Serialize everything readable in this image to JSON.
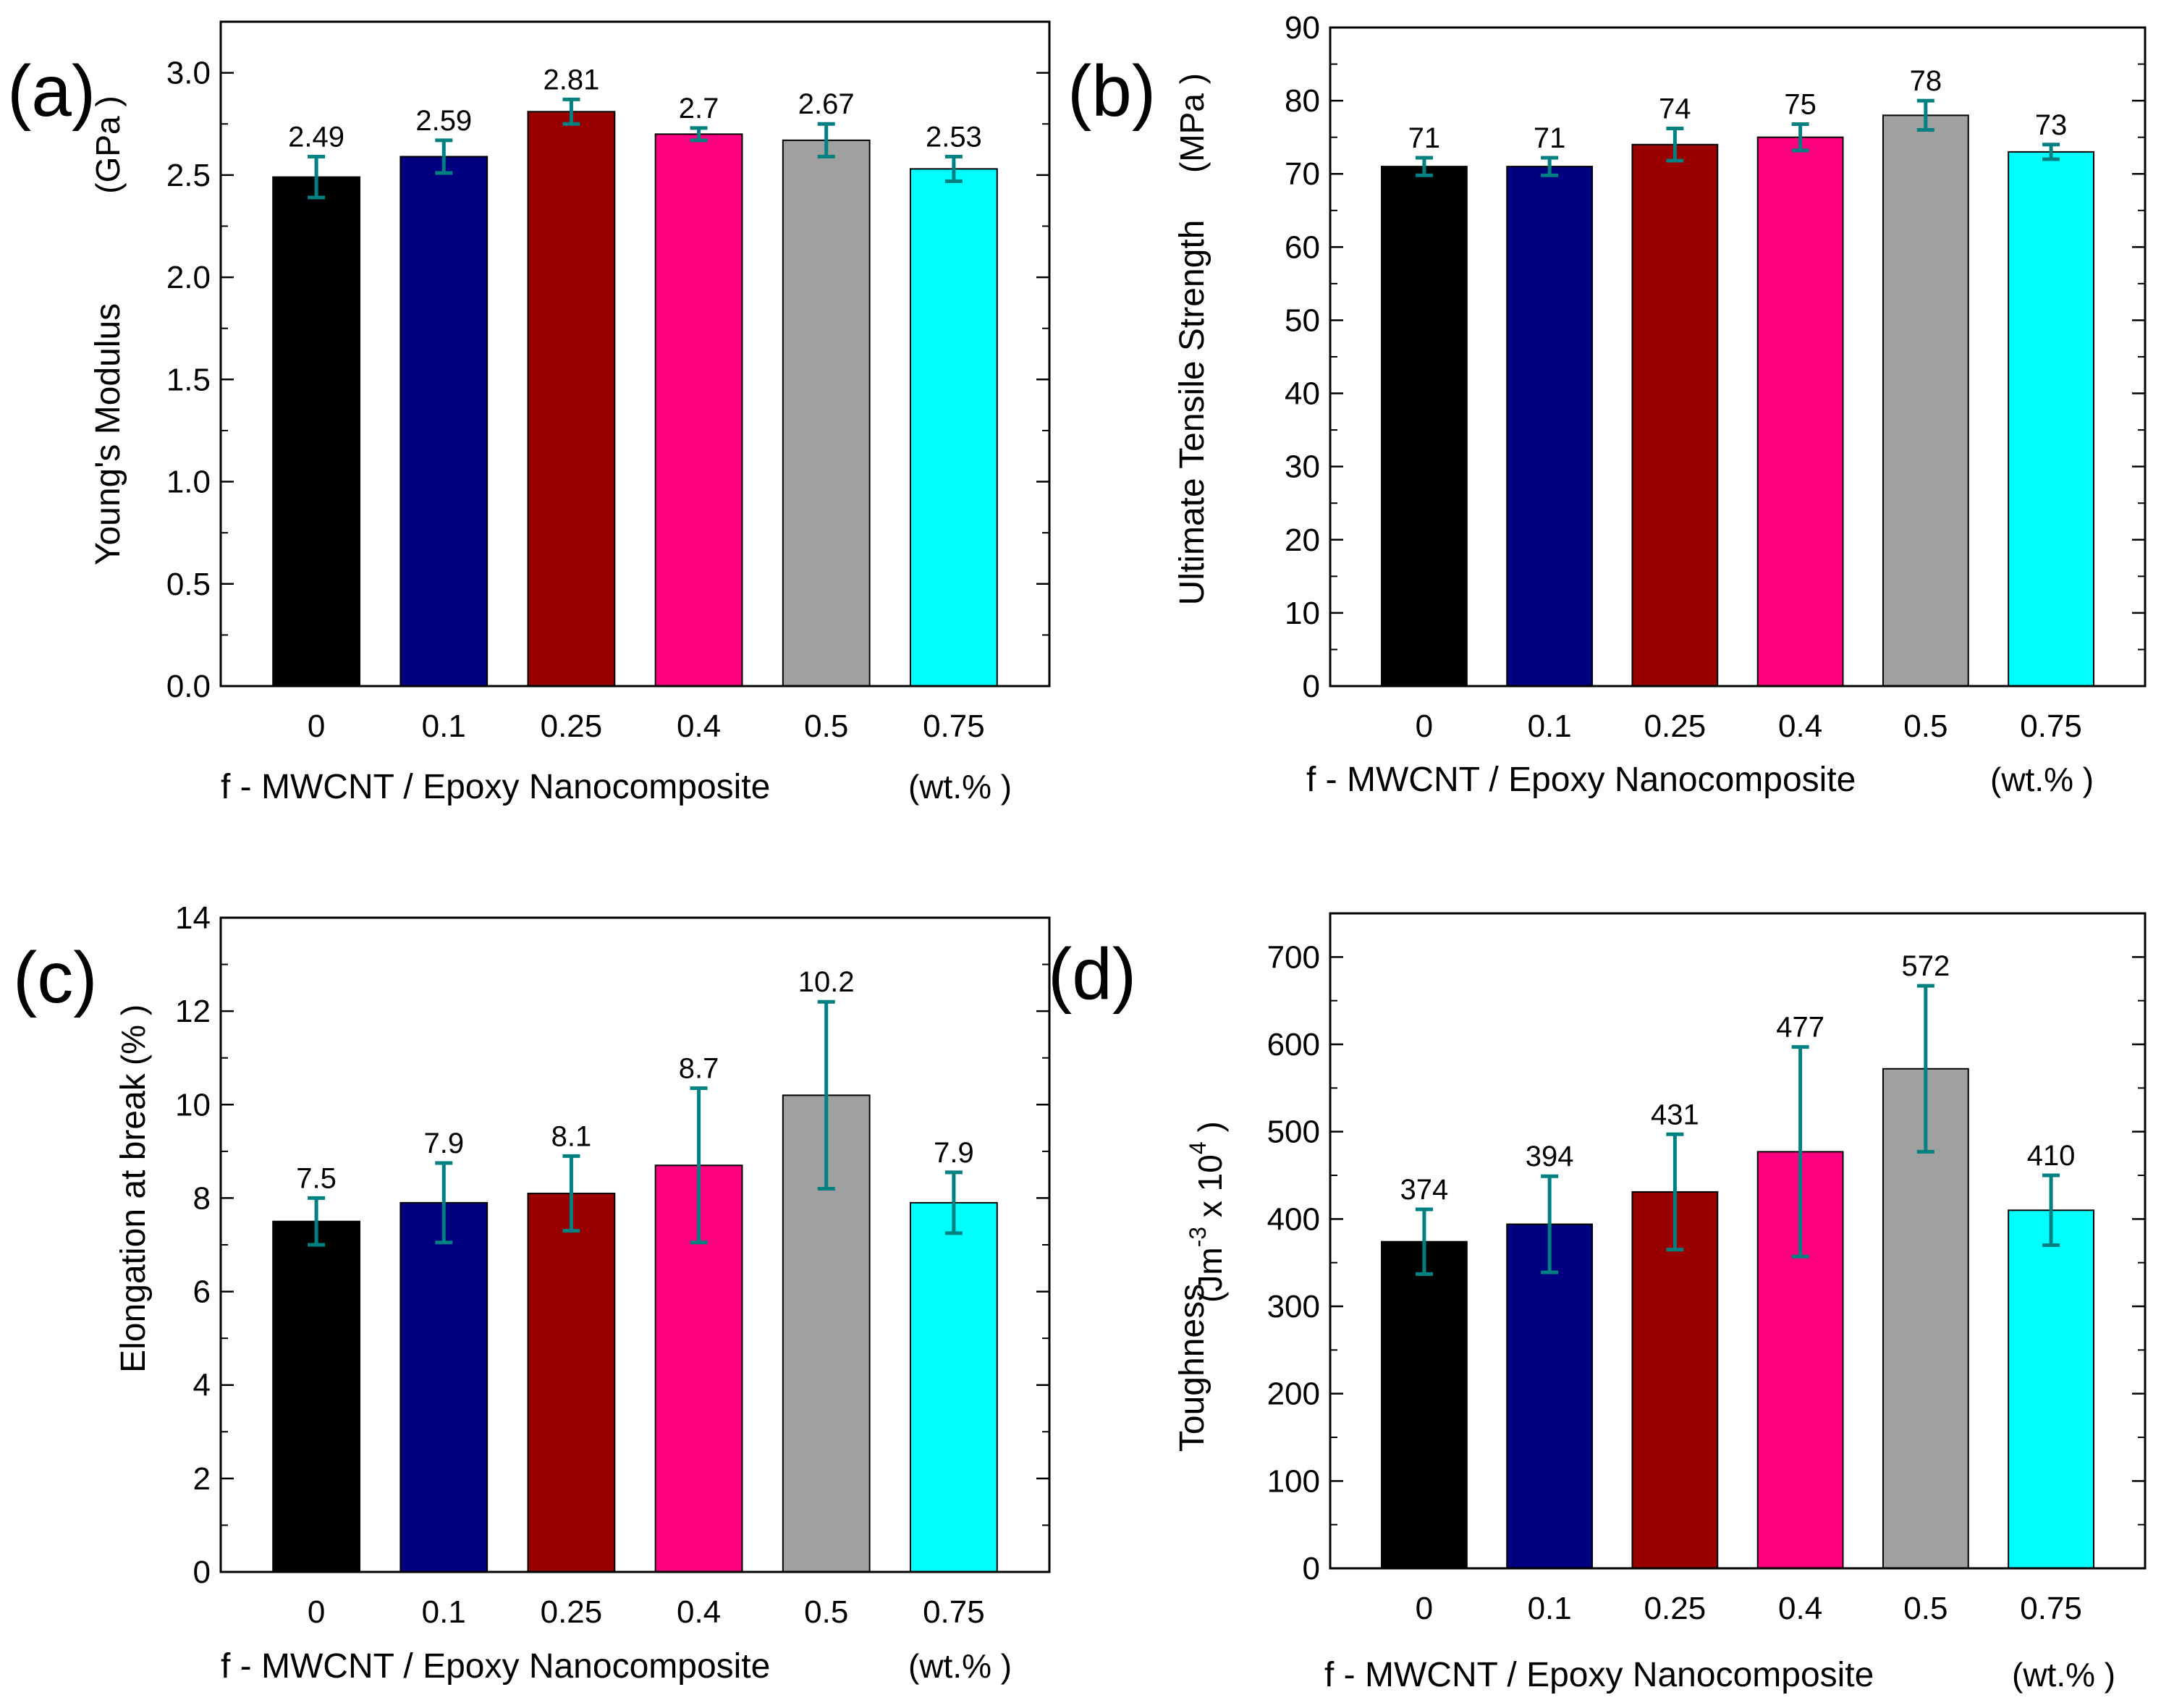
{
  "chart_data": [
    {
      "panel": "(a)",
      "type": "bar",
      "categories": [
        "0",
        "0.1",
        "0.25",
        "0.4",
        "0.5",
        "0.75"
      ],
      "values": [
        2.49,
        2.59,
        2.81,
        2.7,
        2.67,
        2.53
      ],
      "value_labels": [
        "2.49",
        "2.59",
        "2.81",
        "2.7",
        "2.67",
        "2.53"
      ],
      "errors": [
        0.1,
        0.08,
        0.06,
        0.03,
        0.08,
        0.06
      ],
      "colors": [
        "#000000",
        "#000080",
        "#990000",
        "#ff0080",
        "#a0a0a0",
        "#00ffff"
      ],
      "error_color": "#008080",
      "ylim": [
        0,
        3.25
      ],
      "major_ticks": [
        0,
        0.5,
        1.0,
        1.5,
        2.0,
        2.5,
        3.0
      ],
      "tick_labels": [
        "0.0",
        "0.5",
        "1.0",
        "1.5",
        "2.0",
        "2.5",
        "3.0"
      ],
      "minor_step": 0.25,
      "ylabel": "Young's Modulus",
      "yunit": "(GPa )",
      "xlabel": "f - MWCNT / Epoxy Nanocomposite",
      "xunit": "(wt.% )"
    },
    {
      "panel": "(b)",
      "type": "bar",
      "categories": [
        "0",
        "0.1",
        "0.25",
        "0.4",
        "0.5",
        "0.75"
      ],
      "values": [
        71,
        71,
        74,
        75,
        78,
        73
      ],
      "value_labels": [
        "71",
        "71",
        "74",
        "75",
        "78",
        "73"
      ],
      "errors": [
        1.2,
        1.2,
        2.2,
        1.8,
        2.0,
        1.0
      ],
      "colors": [
        "#000000",
        "#000080",
        "#990000",
        "#ff0080",
        "#a0a0a0",
        "#00ffff"
      ],
      "error_color": "#008080",
      "ylim": [
        0,
        90
      ],
      "major_ticks": [
        0,
        10,
        20,
        30,
        40,
        50,
        60,
        70,
        80,
        90
      ],
      "tick_labels": [
        "0",
        "10",
        "20",
        "30",
        "40",
        "50",
        "60",
        "70",
        "80",
        "90"
      ],
      "minor_step": 5,
      "ylabel": "Ultimate Tensile Strength",
      "yunit": "(MPa )",
      "xlabel": "f - MWCNT / Epoxy Nanocomposite",
      "xunit": "(wt.% )"
    },
    {
      "panel": "(c)",
      "type": "bar",
      "categories": [
        "0",
        "0.1",
        "0.25",
        "0.4",
        "0.5",
        "0.75"
      ],
      "values": [
        7.5,
        7.9,
        8.1,
        8.7,
        10.2,
        7.9
      ],
      "value_labels": [
        "7.5",
        "7.9",
        "8.1",
        "8.7",
        "10.2",
        "7.9"
      ],
      "errors": [
        0.5,
        0.85,
        0.8,
        1.65,
        2.0,
        0.65
      ],
      "colors": [
        "#000000",
        "#000080",
        "#990000",
        "#ff0080",
        "#a0a0a0",
        "#00ffff"
      ],
      "error_color": "#008080",
      "ylim": [
        0,
        14
      ],
      "major_ticks": [
        0,
        2,
        4,
        6,
        8,
        10,
        12,
        14
      ],
      "tick_labels": [
        "0",
        "2",
        "4",
        "6",
        "8",
        "10",
        "12",
        "14"
      ],
      "minor_step": 1,
      "ylabel": "Elongation at break",
      "yunit": "(% )",
      "xlabel": "f - MWCNT / Epoxy Nanocomposite",
      "xunit": "(wt.% )"
    },
    {
      "panel": "(d)",
      "type": "bar",
      "categories": [
        "0",
        "0.1",
        "0.25",
        "0.4",
        "0.5",
        "0.75"
      ],
      "values": [
        374,
        394,
        431,
        477,
        572,
        410
      ],
      "value_labels": [
        "374",
        "394",
        "431",
        "477",
        "572",
        "410"
      ],
      "errors": [
        37,
        55,
        66,
        120,
        95,
        40
      ],
      "colors": [
        "#000000",
        "#000080",
        "#990000",
        "#ff0080",
        "#a0a0a0",
        "#00ffff"
      ],
      "error_color": "#008080",
      "ylim": [
        0,
        750
      ],
      "major_ticks": [
        0,
        100,
        200,
        300,
        400,
        500,
        600,
        700
      ],
      "tick_labels": [
        "0",
        "100",
        "200",
        "300",
        "400",
        "500",
        "600",
        "700"
      ],
      "minor_step": 50,
      "ylabel": "Toughness",
      "yunit_parts": [
        "(Jm",
        "-3",
        " x 10",
        "4",
        " )"
      ],
      "xlabel": "f - MWCNT / Epoxy Nanocomposite",
      "xunit": "(wt.% )"
    }
  ]
}
